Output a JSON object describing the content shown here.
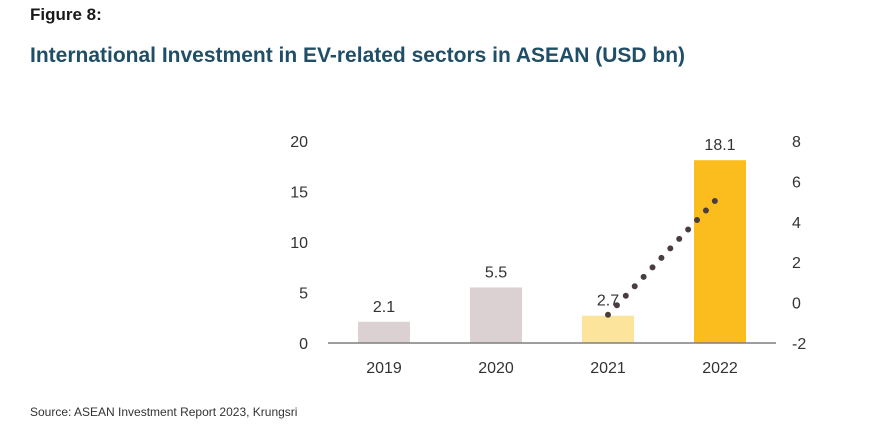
{
  "figure_label": "Figure 8:",
  "title": "International Investment in EV-related sectors in ASEAN (USD bn)",
  "source": "Source: ASEAN Investment Report 2023, Krungsri",
  "colors": {
    "title": "#1f4e66",
    "bar_2019": "#dcd1d2",
    "bar_2020": "#dcd1d2",
    "bar_2021": "#fde49c",
    "bar_2022": "#fbbd1d",
    "line": "#4a3d3e",
    "axis": "#7f7f7f"
  },
  "chart_data": {
    "type": "bar",
    "categories": [
      "2019",
      "2020",
      "2021",
      "2022"
    ],
    "values": [
      2.1,
      5.5,
      2.7,
      18.1
    ],
    "data_labels": [
      "2.1",
      "5.5",
      "2.7",
      "18.1"
    ],
    "ylim": [
      0,
      20
    ],
    "yticks": [
      "0",
      "5",
      "10",
      "15",
      "20"
    ],
    "ylim_right": [
      -2,
      8
    ],
    "yticks_right": [
      "-2",
      "0",
      "2",
      "4",
      "6",
      "8"
    ],
    "line_series": {
      "style": "dotted",
      "axis": "right",
      "points": [
        {
          "x": "2021",
          "y": -0.6
        },
        {
          "x": "2022",
          "y": 5.3
        }
      ]
    },
    "legend": "none",
    "grid": false
  }
}
